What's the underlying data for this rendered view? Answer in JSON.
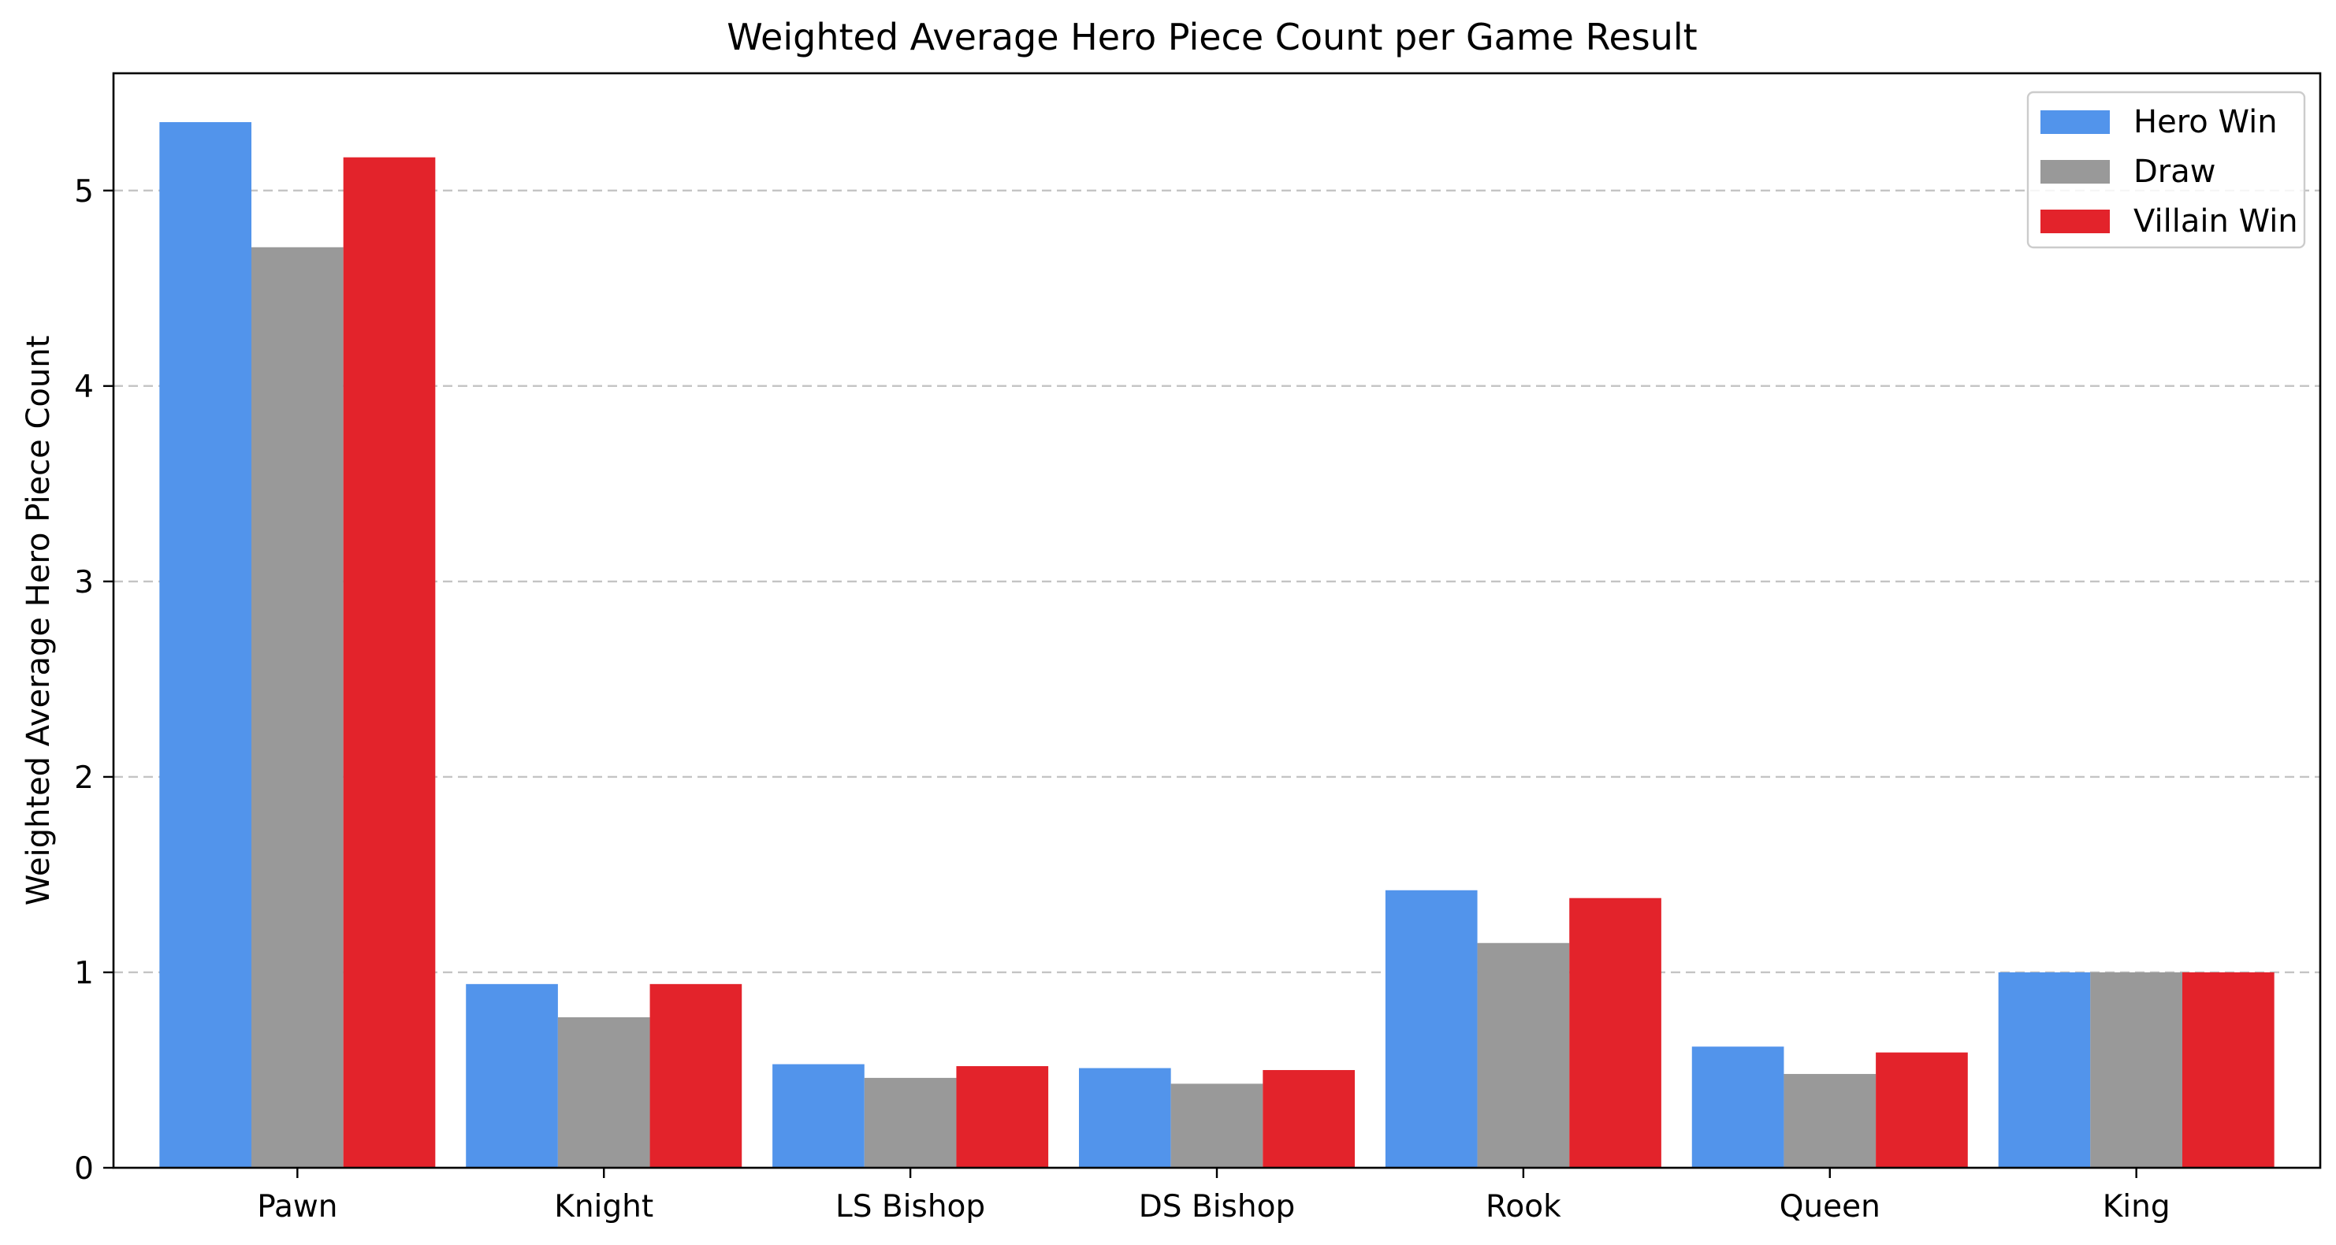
{
  "chart_data": {
    "type": "bar",
    "title": "Weighted Average Hero Piece Count per Game Result",
    "xlabel": "",
    "ylabel": "Weighted Average Hero Piece Count",
    "categories": [
      "Pawn",
      "Knight",
      "LS Bishop",
      "DS Bishop",
      "Rook",
      "Queen",
      "King"
    ],
    "series": [
      {
        "name": "Hero Win",
        "color": "#5294eb",
        "values": [
          5.35,
          0.94,
          0.53,
          0.51,
          1.42,
          0.62,
          1.0
        ]
      },
      {
        "name": "Draw",
        "color": "#999999",
        "values": [
          4.71,
          0.77,
          0.46,
          0.43,
          1.15,
          0.48,
          1.0
        ]
      },
      {
        "name": "Villain Win",
        "color": "#e3232b",
        "values": [
          5.17,
          0.94,
          0.52,
          0.5,
          1.38,
          0.59,
          1.0
        ]
      }
    ],
    "ylim": [
      0,
      5.6
    ],
    "yticks": [
      0,
      1,
      2,
      3,
      4,
      5
    ],
    "grid": {
      "y": true,
      "style": "dashed"
    },
    "legend": {
      "position": "top-right"
    }
  }
}
